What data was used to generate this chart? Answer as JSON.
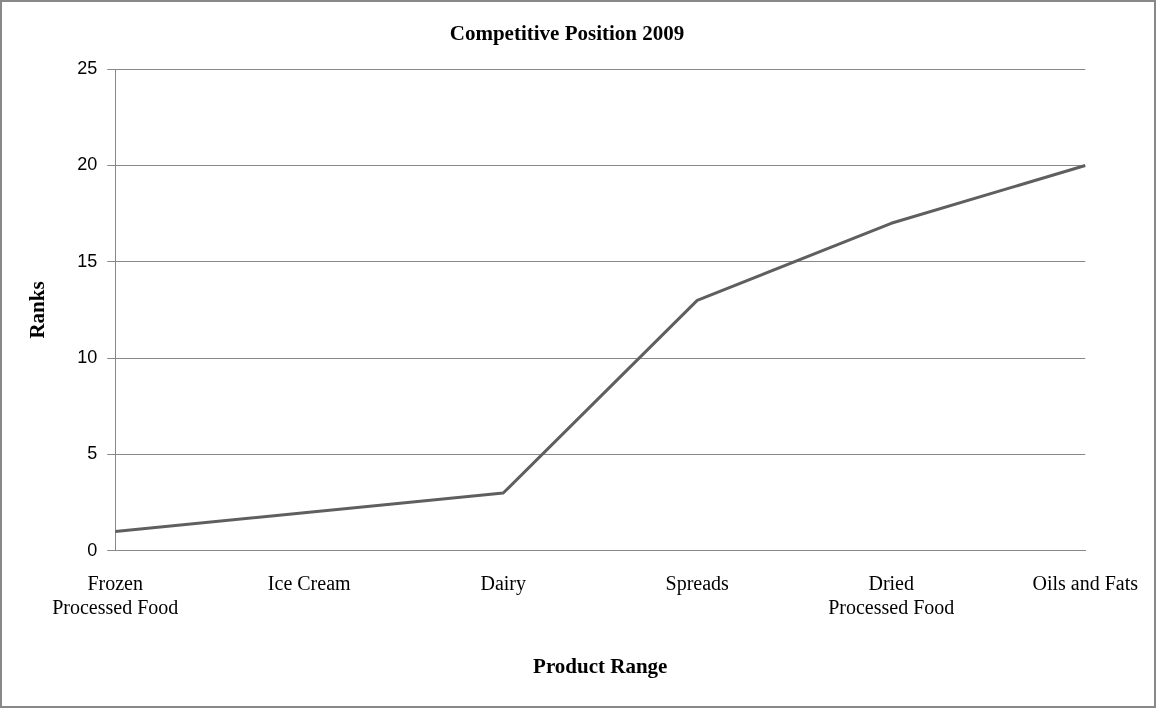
{
  "chart_data": {
    "type": "line",
    "title": "Competitive Position 2009",
    "xlabel": "Product Range",
    "ylabel": "Ranks",
    "categories": [
      "Frozen Processed Food",
      "Ice Cream",
      "Dairy",
      "Spreads",
      "Dried Processed Food",
      "Oils and Fats"
    ],
    "series": [
      {
        "color": "#5f5f5f",
        "values": [
          1,
          2,
          3,
          13,
          17,
          20
        ]
      }
    ],
    "ylim": [
      0,
      25
    ],
    "yticks": [
      0,
      5,
      10,
      15,
      20,
      25
    ],
    "grid": "y",
    "legend": false,
    "marker": "none",
    "line_style": "solid"
  }
}
